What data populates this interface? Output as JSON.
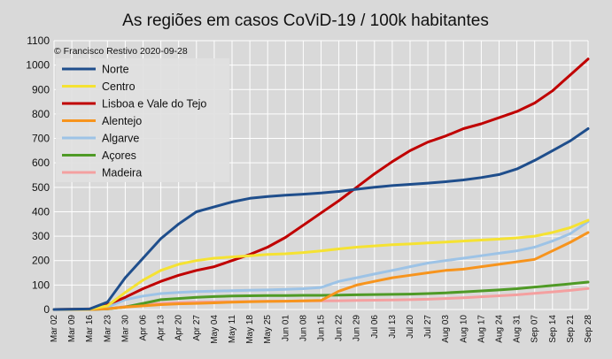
{
  "chart_data": {
    "type": "line",
    "title": "As regiões em casos CoViD-19 / 100k habitantes",
    "annotation": "© Francisco Restivo 2020-09-28",
    "xlabel": "",
    "ylabel": "",
    "ylim": [
      0,
      1100
    ],
    "yticks": [
      0,
      100,
      200,
      300,
      400,
      500,
      600,
      700,
      800,
      900,
      1000,
      1100
    ],
    "xlim": [
      "2020-03-02",
      "2020-09-28"
    ],
    "xticks": [
      "Mar 02",
      "Mar 09",
      "Mar 16",
      "Mar 23",
      "Mar 30",
      "Apr 06",
      "Apr 13",
      "Apr 20",
      "Apr 27",
      "May 04",
      "May 11",
      "May 18",
      "May 25",
      "Jun 01",
      "Jun 08",
      "Jun 15",
      "Jun 22",
      "Jun 29",
      "Jul 06",
      "Jul 13",
      "Jul 20",
      "Jul 27",
      "Aug 03",
      "Aug 10",
      "Aug 17",
      "Aug 24",
      "Aug 31",
      "Sep 07",
      "Sep 14",
      "Sep 21",
      "Sep 28"
    ],
    "grid": true,
    "legend_position": "top-left",
    "background": "#d9d9d9",
    "series": [
      {
        "name": "Norte",
        "color": "#1f4e8c",
        "x": [
          "2020-03-02",
          "2020-03-16",
          "2020-03-23",
          "2020-03-30",
          "2020-04-06",
          "2020-04-13",
          "2020-04-20",
          "2020-04-27",
          "2020-05-04",
          "2020-05-11",
          "2020-05-18",
          "2020-05-25",
          "2020-06-01",
          "2020-06-08",
          "2020-06-15",
          "2020-06-22",
          "2020-06-29",
          "2020-07-06",
          "2020-07-13",
          "2020-07-20",
          "2020-07-27",
          "2020-08-03",
          "2020-08-10",
          "2020-08-17",
          "2020-08-24",
          "2020-08-31",
          "2020-09-07",
          "2020-09-14",
          "2020-09-21",
          "2020-09-28"
        ],
        "values": [
          0,
          2,
          30,
          130,
          210,
          290,
          350,
          400,
          420,
          440,
          455,
          462,
          468,
          472,
          477,
          483,
          492,
          500,
          507,
          512,
          517,
          523,
          530,
          540,
          552,
          575,
          610,
          650,
          690,
          740
        ]
      },
      {
        "name": "Centro",
        "color": "#f5e232",
        "x": [
          "2020-03-02",
          "2020-03-16",
          "2020-03-23",
          "2020-03-30",
          "2020-04-06",
          "2020-04-13",
          "2020-04-20",
          "2020-04-27",
          "2020-05-04",
          "2020-05-11",
          "2020-05-18",
          "2020-05-25",
          "2020-06-01",
          "2020-06-08",
          "2020-06-15",
          "2020-06-22",
          "2020-06-29",
          "2020-07-06",
          "2020-07-13",
          "2020-07-20",
          "2020-07-27",
          "2020-08-03",
          "2020-08-10",
          "2020-08-17",
          "2020-08-24",
          "2020-08-31",
          "2020-09-07",
          "2020-09-14",
          "2020-09-21",
          "2020-09-28"
        ],
        "values": [
          0,
          1,
          15,
          70,
          120,
          160,
          185,
          200,
          210,
          215,
          220,
          225,
          228,
          233,
          240,
          248,
          255,
          260,
          265,
          268,
          272,
          276,
          280,
          284,
          288,
          293,
          300,
          315,
          335,
          365
        ]
      },
      {
        "name": "Lisboa e Vale do Tejo",
        "color": "#c00000",
        "x": [
          "2020-03-02",
          "2020-03-16",
          "2020-03-23",
          "2020-03-30",
          "2020-04-06",
          "2020-04-13",
          "2020-04-20",
          "2020-04-27",
          "2020-05-04",
          "2020-05-11",
          "2020-05-18",
          "2020-05-25",
          "2020-06-01",
          "2020-06-08",
          "2020-06-15",
          "2020-06-22",
          "2020-06-29",
          "2020-07-06",
          "2020-07-13",
          "2020-07-20",
          "2020-07-27",
          "2020-08-03",
          "2020-08-10",
          "2020-08-17",
          "2020-08-24",
          "2020-08-31",
          "2020-09-07",
          "2020-09-14",
          "2020-09-21",
          "2020-09-28"
        ],
        "values": [
          0,
          2,
          20,
          50,
          85,
          115,
          140,
          160,
          175,
          200,
          225,
          255,
          295,
          345,
          395,
          445,
          500,
          555,
          605,
          650,
          685,
          710,
          740,
          760,
          785,
          810,
          845,
          895,
          960,
          1025
        ]
      },
      {
        "name": "Alentejo",
        "color": "#f7941d",
        "x": [
          "2020-03-02",
          "2020-03-16",
          "2020-03-23",
          "2020-03-30",
          "2020-04-06",
          "2020-04-13",
          "2020-04-20",
          "2020-04-27",
          "2020-05-04",
          "2020-05-11",
          "2020-05-18",
          "2020-05-25",
          "2020-06-01",
          "2020-06-08",
          "2020-06-15",
          "2020-06-22",
          "2020-06-29",
          "2020-07-06",
          "2020-07-13",
          "2020-07-20",
          "2020-07-27",
          "2020-08-03",
          "2020-08-10",
          "2020-08-17",
          "2020-08-24",
          "2020-08-31",
          "2020-09-07",
          "2020-09-14",
          "2020-09-21",
          "2020-09-28"
        ],
        "values": [
          0,
          0,
          3,
          10,
          15,
          20,
          23,
          25,
          27,
          30,
          32,
          33,
          34,
          35,
          37,
          75,
          100,
          115,
          130,
          140,
          150,
          160,
          165,
          175,
          185,
          195,
          205,
          240,
          275,
          315
        ]
      },
      {
        "name": "Algarve",
        "color": "#9dc3e6",
        "x": [
          "2020-03-02",
          "2020-03-16",
          "2020-03-23",
          "2020-03-30",
          "2020-04-06",
          "2020-04-13",
          "2020-04-20",
          "2020-04-27",
          "2020-05-04",
          "2020-05-11",
          "2020-05-18",
          "2020-05-25",
          "2020-06-01",
          "2020-06-08",
          "2020-06-15",
          "2020-06-22",
          "2020-06-29",
          "2020-07-06",
          "2020-07-13",
          "2020-07-20",
          "2020-07-27",
          "2020-08-03",
          "2020-08-10",
          "2020-08-17",
          "2020-08-24",
          "2020-08-31",
          "2020-09-07",
          "2020-09-14",
          "2020-09-21",
          "2020-09-28"
        ],
        "values": [
          0,
          1,
          10,
          40,
          55,
          65,
          70,
          73,
          75,
          77,
          79,
          80,
          82,
          85,
          90,
          115,
          130,
          145,
          160,
          175,
          190,
          200,
          210,
          220,
          230,
          240,
          255,
          280,
          310,
          360
        ]
      },
      {
        "name": "Açores",
        "color": "#4f9a26",
        "x": [
          "2020-03-02",
          "2020-03-16",
          "2020-03-23",
          "2020-03-30",
          "2020-04-06",
          "2020-04-13",
          "2020-04-20",
          "2020-04-27",
          "2020-05-04",
          "2020-05-11",
          "2020-05-18",
          "2020-05-25",
          "2020-06-01",
          "2020-06-08",
          "2020-06-15",
          "2020-06-22",
          "2020-06-29",
          "2020-07-06",
          "2020-07-13",
          "2020-07-20",
          "2020-07-27",
          "2020-08-03",
          "2020-08-10",
          "2020-08-17",
          "2020-08-24",
          "2020-08-31",
          "2020-09-07",
          "2020-09-14",
          "2020-09-21",
          "2020-09-28"
        ],
        "values": [
          0,
          0,
          2,
          10,
          25,
          40,
          45,
          50,
          53,
          55,
          56,
          57,
          57,
          58,
          58,
          59,
          60,
          61,
          62,
          63,
          65,
          68,
          72,
          76,
          80,
          85,
          92,
          98,
          105,
          112
        ]
      },
      {
        "name": "Madeira",
        "color": "#f4a0a0",
        "x": [
          "2020-03-02",
          "2020-03-16",
          "2020-03-23",
          "2020-03-30",
          "2020-04-06",
          "2020-04-13",
          "2020-04-20",
          "2020-04-27",
          "2020-05-04",
          "2020-05-11",
          "2020-05-18",
          "2020-05-25",
          "2020-06-01",
          "2020-06-08",
          "2020-06-15",
          "2020-06-22",
          "2020-06-29",
          "2020-07-06",
          "2020-07-13",
          "2020-07-20",
          "2020-07-27",
          "2020-08-03",
          "2020-08-10",
          "2020-08-17",
          "2020-08-24",
          "2020-08-31",
          "2020-09-07",
          "2020-09-14",
          "2020-09-21",
          "2020-09-28"
        ],
        "values": [
          0,
          0,
          3,
          12,
          20,
          25,
          28,
          30,
          31,
          32,
          33,
          34,
          34,
          35,
          35,
          36,
          37,
          38,
          39,
          40,
          42,
          45,
          48,
          52,
          56,
          60,
          66,
          72,
          78,
          86
        ]
      }
    ]
  }
}
